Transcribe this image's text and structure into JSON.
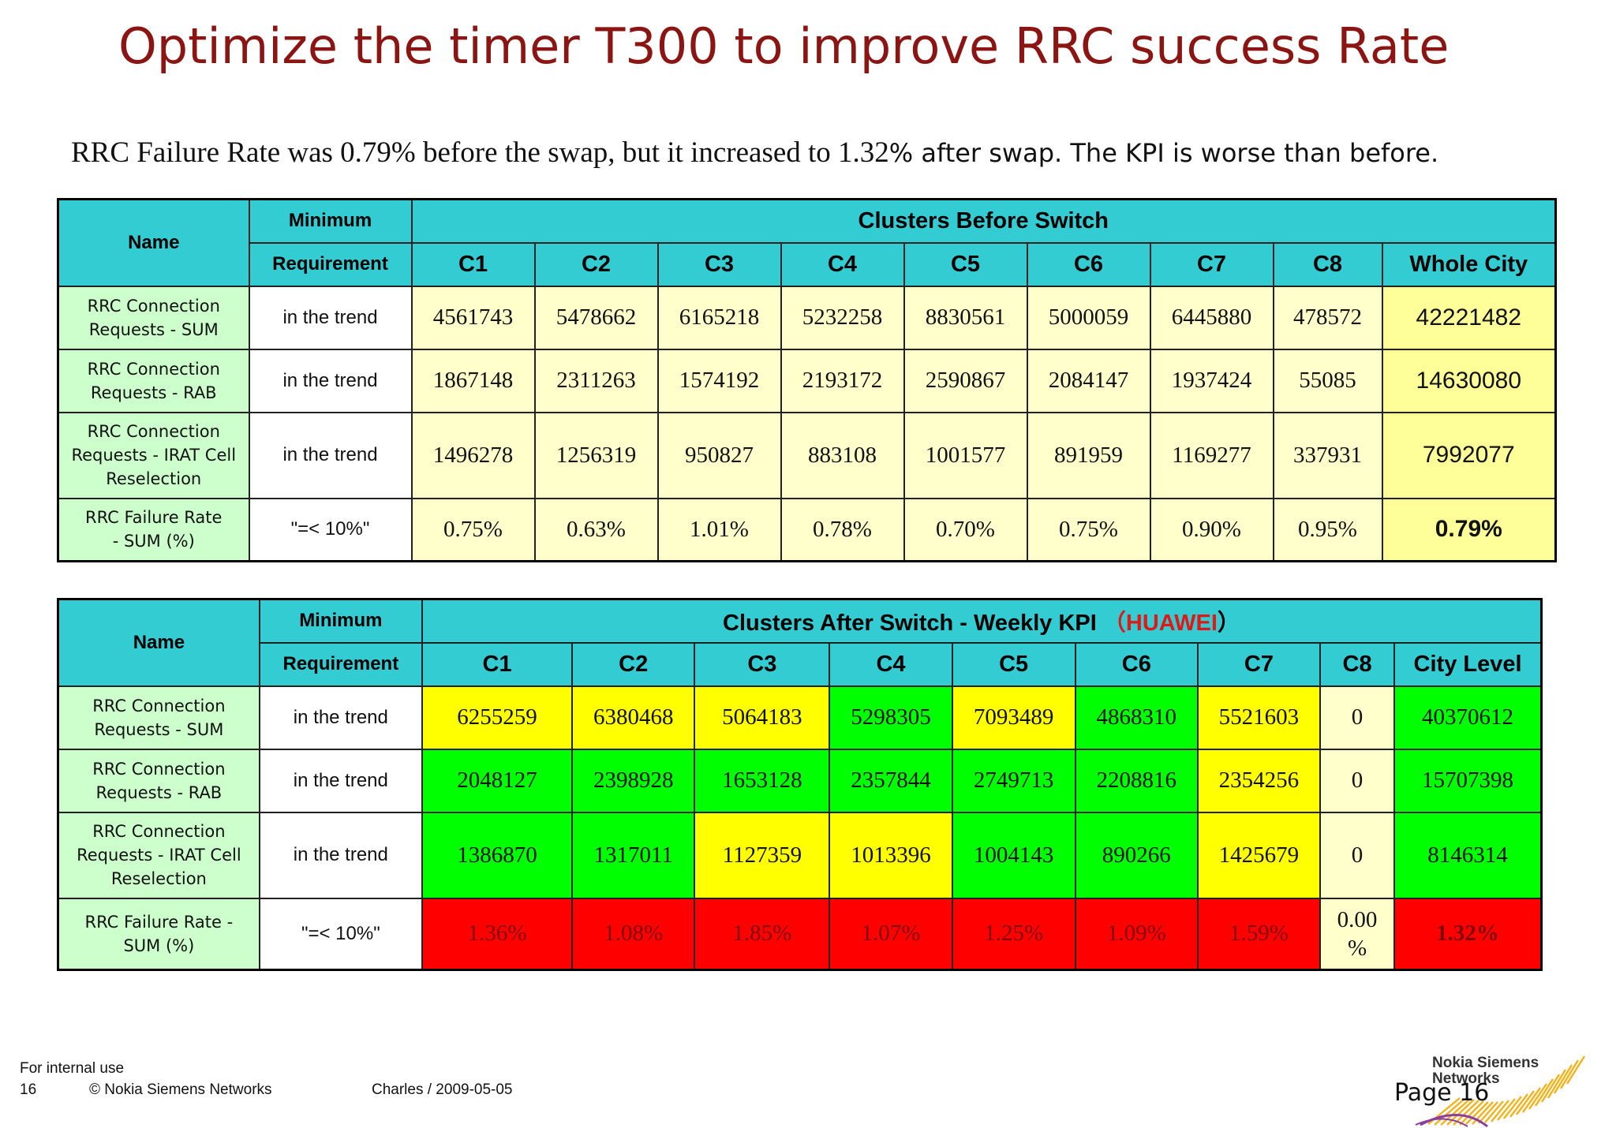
{
  "title": "Optimize the timer T300 to improve RRC success Rate",
  "subtitle": {
    "part1": "RRC Failure Rate was 0.79% before the swap, but it increased to 1.32",
    "percent": "%",
    "part2": " after swap. The KPI is worse than before."
  },
  "table_before": {
    "name_header": "Name",
    "req_header_1": "Minimum",
    "req_header_2": "Requirement",
    "group_header": "Clusters Before Switch",
    "columns": [
      "C1",
      "C2",
      "C3",
      "C4",
      "C5",
      "C6",
      "C7",
      "C8",
      "Whole City"
    ],
    "rows": [
      {
        "name_1": "RRC Connection",
        "name_2": "Requests - SUM",
        "name_3": "",
        "req": "in the trend",
        "values": [
          "4561743",
          "5478662",
          "6165218",
          "5232258",
          "8830561",
          "5000059",
          "6445880",
          "478572"
        ],
        "city": "42221482"
      },
      {
        "name_1": "RRC Connection",
        "name_2": "Requests - RAB",
        "name_3": "",
        "req": "in the trend",
        "values": [
          "1867148",
          "2311263",
          "1574192",
          "2193172",
          "2590867",
          "2084147",
          "1937424",
          "55085"
        ],
        "city": "14630080"
      },
      {
        "name_1": "RRC Connection",
        "name_2": "Requests - IRAT Cell",
        "name_3": "Reselection",
        "req": "in the trend",
        "values": [
          "1496278",
          "1256319",
          "950827",
          "883108",
          "1001577",
          "891959",
          "1169277",
          "337931"
        ],
        "city": "7992077"
      },
      {
        "name_1": "RRC Failure Rate",
        "name_2": "- SUM (%)",
        "name_3": "",
        "req": "\"=< 10%\"",
        "values": [
          "0.75%",
          "0.63%",
          "1.01%",
          "0.78%",
          "0.70%",
          "0.75%",
          "0.90%",
          "0.95%"
        ],
        "city": "0.79%"
      }
    ]
  },
  "table_after": {
    "name_header": "Name",
    "req_header_1": "Minimum",
    "req_header_2": "Requirement",
    "group_header": "Clusters After Switch - Weekly KPI ",
    "group_vendor_open": "（",
    "group_vendor": "HUAWEI",
    "group_vendor_close": "）",
    "columns": [
      "C1",
      "C2",
      "C3",
      "C4",
      "C5",
      "C6",
      "C7",
      "C8",
      "City Level"
    ],
    "rows": [
      {
        "name_1": "RRC Connection",
        "name_2": "Requests - SUM",
        "name_3": "",
        "req": "in the trend",
        "values": [
          "6255259",
          "6380468",
          "5064183",
          "5298305",
          "7093489",
          "4868310",
          "5521603",
          "0"
        ],
        "city": "40370612"
      },
      {
        "name_1": "RRC Connection",
        "name_2": "Requests - RAB",
        "name_3": "",
        "req": "in the trend",
        "values": [
          "2048127",
          "2398928",
          "1653128",
          "2357844",
          "2749713",
          "2208816",
          "2354256",
          "0"
        ],
        "city": "15707398"
      },
      {
        "name_1": "RRC Connection",
        "name_2": "Requests - IRAT Cell",
        "name_3": "Reselection",
        "req": "in the trend",
        "values": [
          "1386870",
          "1317011",
          "1127359",
          "1013396",
          "1004143",
          "890266",
          "1425679",
          "0"
        ],
        "city": "8146314"
      },
      {
        "name_1": "RRC Failure Rate -",
        "name_2": "SUM (%)",
        "name_3": "",
        "req": "\"=< 10%\"",
        "values": [
          "1.36%",
          "1.08%",
          "1.85%",
          "1.07%",
          "1.25%",
          "1.09%",
          "1.59%"
        ],
        "c8_line1": "0.00",
        "c8_line2": "%",
        "city": "1.32%"
      }
    ]
  },
  "footer": {
    "internal": "For internal use",
    "page_num": "16",
    "copyright": "© Nokia Siemens Networks",
    "author_date": "Charles / 2009-05-05",
    "logo_line1": "Nokia Siemens",
    "logo_line2": "Networks",
    "page_label": "Page 16"
  },
  "colors": {
    "title": "#8b1512",
    "header": "#33ccd2",
    "name_cell": "#ccffcc",
    "light_yellow": "#ffffcc",
    "yellow": "#ffff00",
    "green": "#00ff00",
    "red": "#ff0000",
    "huawei": "#e01818"
  }
}
